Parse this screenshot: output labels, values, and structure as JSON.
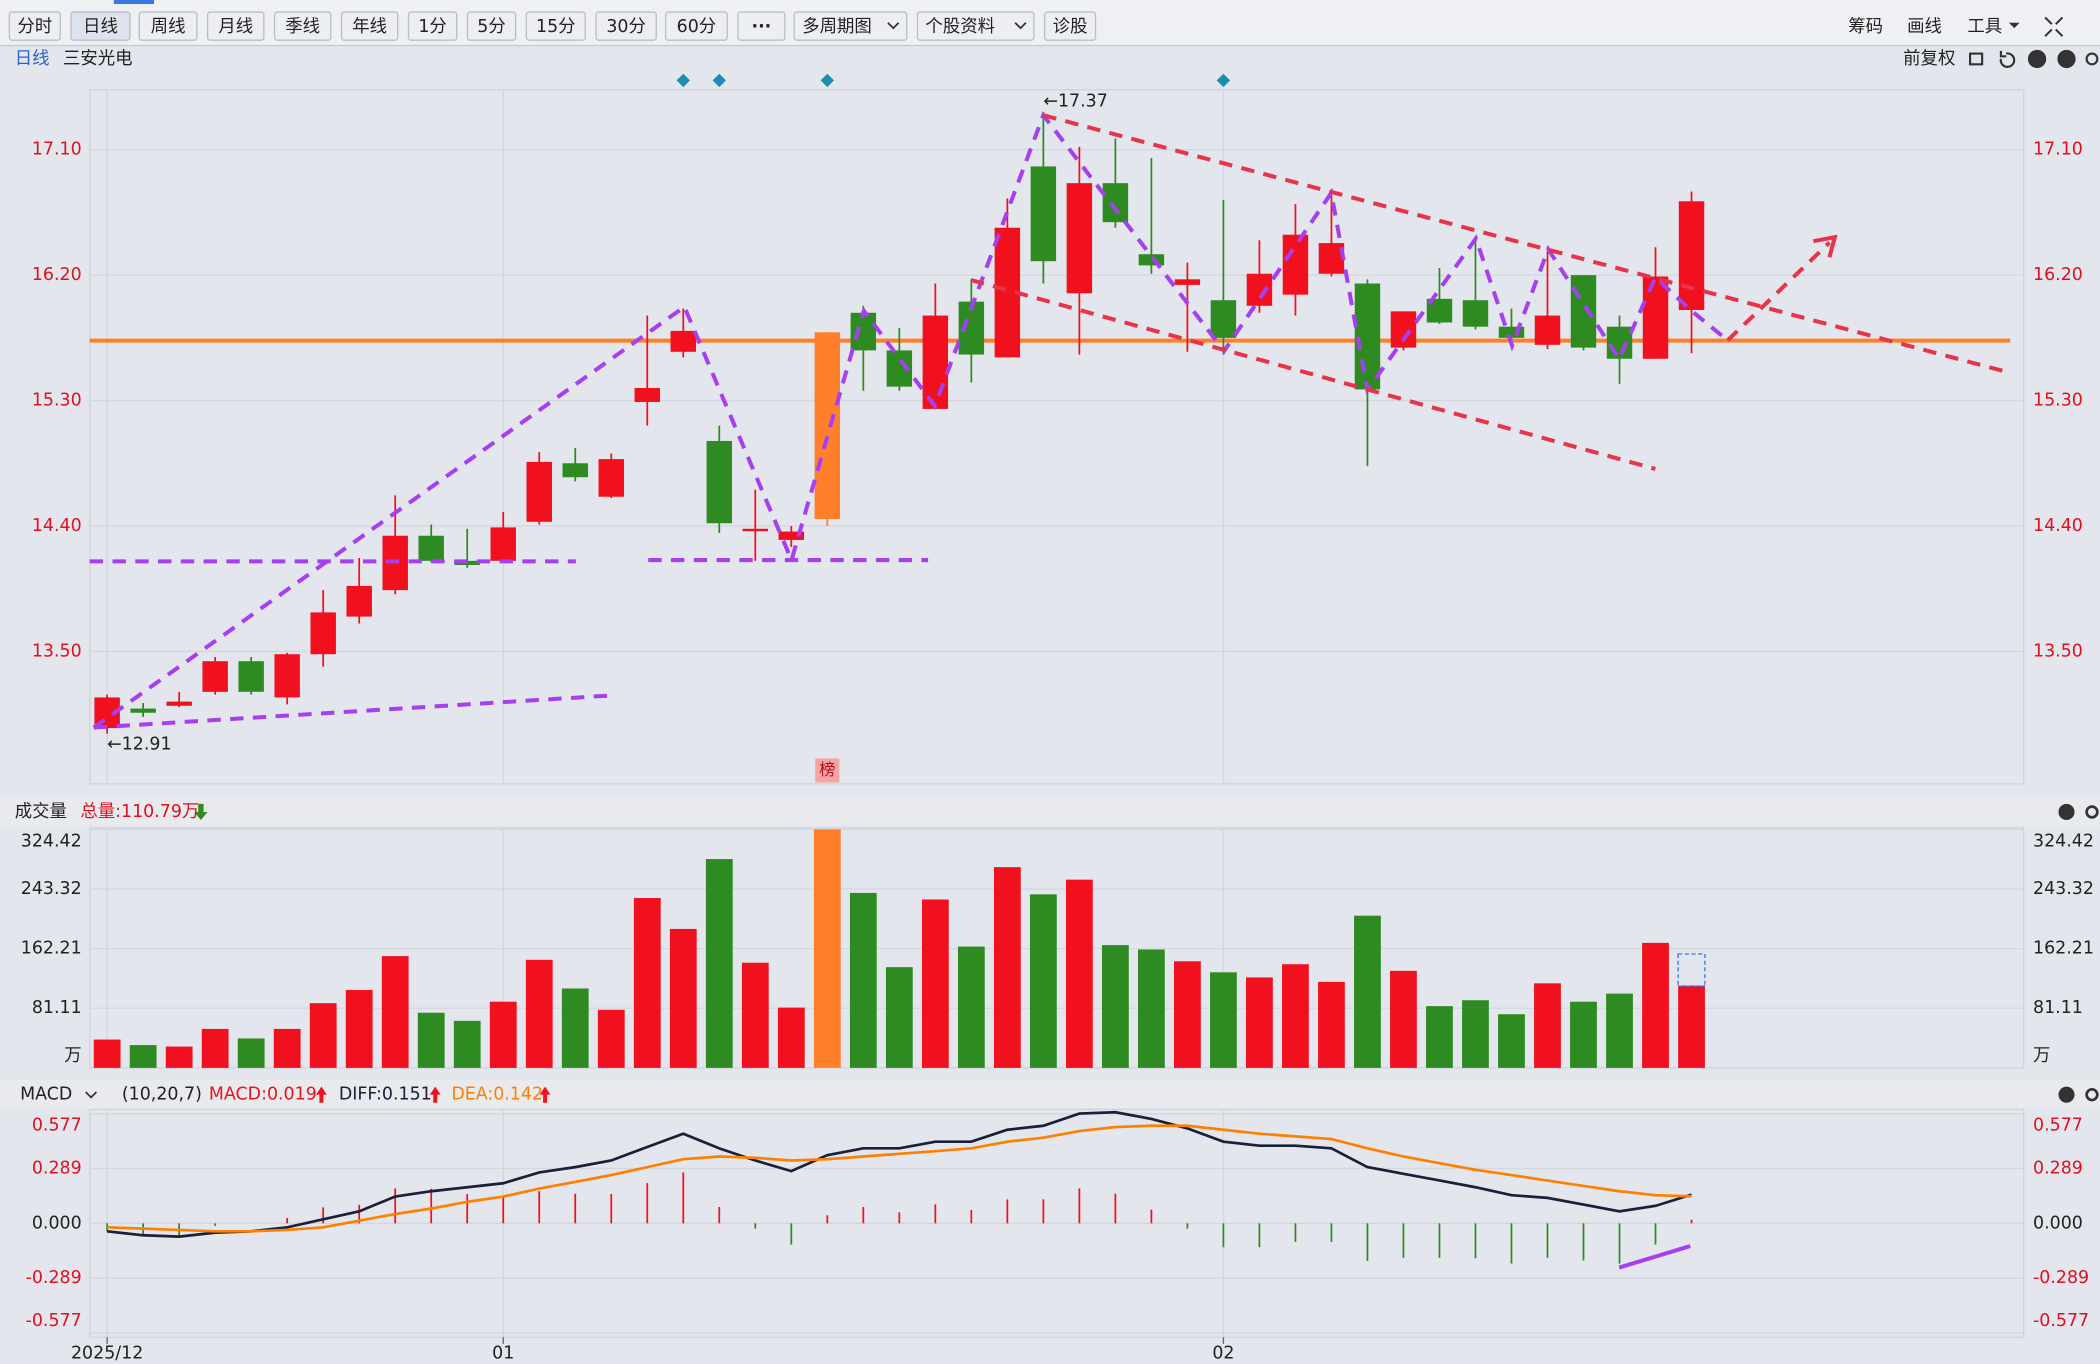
{
  "toolbar": {
    "tabs": [
      "分时",
      "日线",
      "周线",
      "月线",
      "季线",
      "年线",
      "1分",
      "5分",
      "15分",
      "30分",
      "60分",
      "···",
      "多周期图",
      "个股资料",
      "诊股"
    ],
    "active": 1,
    "right": [
      "筹码",
      "画线",
      "工具"
    ]
  },
  "header": {
    "period": "日线",
    "stock": "三安光电",
    "adjust": "前复权"
  },
  "chart_data": [
    {
      "type": "candlestick",
      "categories": [
        "2025/12",
        null,
        null,
        null,
        null,
        null,
        null,
        null,
        null,
        null,
        null,
        "01",
        null,
        null,
        null,
        null,
        null,
        null,
        null,
        null,
        null,
        null,
        null,
        null,
        null,
        null,
        null,
        null,
        null,
        null,
        null,
        "02",
        null,
        null,
        null,
        null,
        null,
        null,
        null,
        null,
        null,
        null,
        null,
        null,
        null
      ],
      "open": [
        12.95,
        13.09,
        13.11,
        13.21,
        13.43,
        13.17,
        13.48,
        13.75,
        13.94,
        14.33,
        14.15,
        14.15,
        14.43,
        14.85,
        14.61,
        15.29,
        15.65,
        15.01,
        14.37,
        14.3,
        14.45,
        15.93,
        15.66,
        15.24,
        16.01,
        15.61,
        16.98,
        16.07,
        16.86,
        16.35,
        16.13,
        16.02,
        15.98,
        16.06,
        16.21,
        16.14,
        15.68,
        16.03,
        16.02,
        15.83,
        15.7,
        16.2,
        15.83,
        15.6,
        15.95
      ],
      "high": [
        13.19,
        13.13,
        13.21,
        13.46,
        13.46,
        13.49,
        13.94,
        14.17,
        14.62,
        14.41,
        14.38,
        14.5,
        14.93,
        14.96,
        14.92,
        15.91,
        15.96,
        15.12,
        14.66,
        14.4,
        15.79,
        15.98,
        15.82,
        16.14,
        16.17,
        16.75,
        17.37,
        17.12,
        17.18,
        17.04,
        16.29,
        16.74,
        16.45,
        16.71,
        16.77,
        16.17,
        15.94,
        16.25,
        16.48,
        15.96,
        16.37,
        16.2,
        15.91,
        16.4,
        16.8
      ],
      "low": [
        12.91,
        13.03,
        13.1,
        13.19,
        13.19,
        13.12,
        13.39,
        13.7,
        13.91,
        14.14,
        14.1,
        14.14,
        14.41,
        14.72,
        14.6,
        15.12,
        15.61,
        14.35,
        14.15,
        14.25,
        14.4,
        15.37,
        15.37,
        15.24,
        15.43,
        15.61,
        16.14,
        15.63,
        16.54,
        16.21,
        15.65,
        15.63,
        15.93,
        15.91,
        16.19,
        14.83,
        15.66,
        15.85,
        15.81,
        15.7,
        15.67,
        15.66,
        15.42,
        15.6,
        15.64
      ],
      "close": [
        13.17,
        13.06,
        13.14,
        13.43,
        13.21,
        13.48,
        13.78,
        13.97,
        14.33,
        14.15,
        14.12,
        14.39,
        14.86,
        14.75,
        14.88,
        15.39,
        15.8,
        14.42,
        14.38,
        14.36,
        15.79,
        15.66,
        15.4,
        15.91,
        15.63,
        16.54,
        16.3,
        16.86,
        16.58,
        16.27,
        16.17,
        15.75,
        16.21,
        16.49,
        16.43,
        15.38,
        15.94,
        15.86,
        15.83,
        15.75,
        15.91,
        15.68,
        15.6,
        16.19,
        16.73
      ],
      "up_color": "#f0101e",
      "down_color": "#2e8b22",
      "highlight": {
        "index": 20,
        "color": "#ff7f2a",
        "label": "榜"
      },
      "ylim": [
        12.55,
        17.53
      ],
      "yticks": [
        {
          "value": 13.5,
          "label": "13.50"
        },
        {
          "value": 14.4,
          "label": "14.40"
        },
        {
          "value": 15.3,
          "label": "15.30"
        },
        {
          "value": 16.2,
          "label": "16.20"
        },
        {
          "value": 17.1,
          "label": "17.10"
        }
      ],
      "grid": true,
      "hline": {
        "value": 15.73,
        "color": "#ff7f27"
      },
      "extreme_labels": [
        {
          "index": 26,
          "label": "←17.37"
        },
        {
          "index": 0,
          "label": "←12.91"
        }
      ],
      "markers": {
        "indices": [
          16,
          17,
          20,
          31
        ],
        "color": "#1a8db5"
      }
    },
    {
      "type": "bar",
      "title": "成交量",
      "total_label": "总量:110.79万",
      "values": [
        38.5,
        31,
        29,
        53,
        40,
        53,
        88,
        106,
        152,
        75,
        64,
        90,
        147,
        108,
        79,
        231,
        189,
        284,
        143,
        82,
        324.42,
        238,
        137,
        229,
        165,
        273,
        236,
        256,
        167,
        161,
        145,
        130,
        123,
        141,
        117,
        207,
        132,
        84,
        92,
        73,
        115,
        90,
        101,
        170,
        112
      ],
      "unit": "万",
      "ylim": [
        0,
        326.2
      ],
      "yticks": [
        81.11,
        162.21,
        243.32,
        324.42
      ]
    },
    {
      "type": "macd",
      "title": "MACD",
      "params": "(10,20,7)",
      "series": [
        {
          "label": "MACD:0.019",
          "color": "#f0101e",
          "values": [
            -0.042,
            -0.07,
            -0.07,
            -0.014,
            0,
            0.028,
            0.084,
            0.098,
            0.184,
            0.182,
            0.154,
            0.14,
            0.17,
            0.156,
            0.154,
            0.212,
            0.268,
            0.086,
            -0.028,
            -0.112,
            0.042,
            0.086,
            0.058,
            0.1,
            0.07,
            0.126,
            0.126,
            0.184,
            0.156,
            0.072,
            -0.028,
            -0.126,
            -0.126,
            -0.098,
            -0.098,
            -0.198,
            -0.182,
            -0.182,
            -0.184,
            -0.212,
            -0.182,
            -0.196,
            -0.212,
            -0.112,
            0.019
          ]
        },
        {
          "label": "DIFF:0.151",
          "color": "#1a1f3a",
          "values": [
            -0.042,
            -0.063,
            -0.07,
            -0.049,
            -0.042,
            -0.021,
            0.021,
            0.063,
            0.141,
            0.169,
            0.19,
            0.211,
            0.268,
            0.296,
            0.331,
            0.402,
            0.472,
            0.395,
            0.331,
            0.275,
            0.359,
            0.395,
            0.395,
            0.43,
            0.43,
            0.493,
            0.514,
            0.578,
            0.585,
            0.55,
            0.5,
            0.43,
            0.409,
            0.409,
            0.395,
            0.296,
            0.261,
            0.226,
            0.19,
            0.148,
            0.134,
            0.099,
            0.063,
            0.092,
            0.151
          ]
        },
        {
          "label": "DEA:0.142",
          "color": "#ff8000",
          "values": [
            -0.021,
            -0.028,
            -0.035,
            -0.042,
            -0.042,
            -0.035,
            -0.021,
            0.014,
            0.049,
            0.078,
            0.113,
            0.141,
            0.183,
            0.218,
            0.254,
            0.296,
            0.338,
            0.352,
            0.345,
            0.331,
            0.338,
            0.352,
            0.366,
            0.38,
            0.395,
            0.43,
            0.451,
            0.486,
            0.507,
            0.514,
            0.514,
            0.493,
            0.472,
            0.458,
            0.444,
            0.395,
            0.352,
            0.317,
            0.282,
            0.254,
            0.225,
            0.197,
            0.169,
            0.148,
            0.142
          ]
        }
      ],
      "ylim": [
        -0.6,
        0.6
      ],
      "yticks": [
        0.577,
        0.289,
        {
          "value": 0,
          "label": "0.000"
        },
        -0.289,
        -0.577
      ]
    }
  ]
}
